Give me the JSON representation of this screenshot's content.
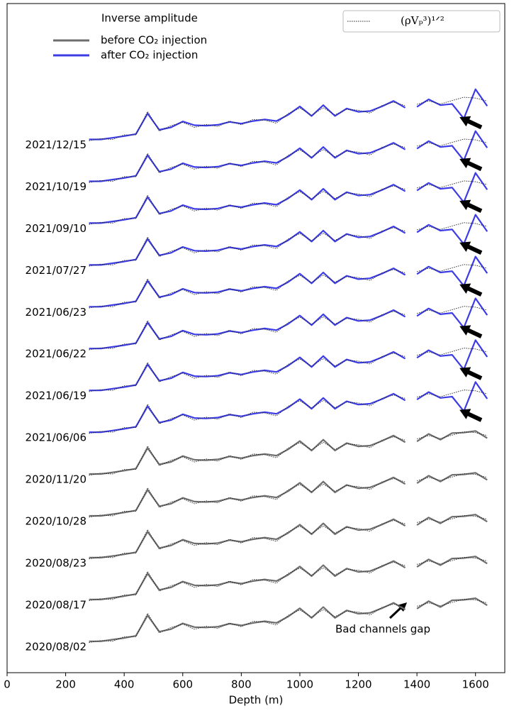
{
  "chart_data": {
    "type": "line",
    "x_label": "Depth (m)",
    "xlim": [
      0,
      1700
    ],
    "xticks": [
      0,
      200,
      400,
      600,
      800,
      1000,
      1200,
      1400,
      1600
    ],
    "ylim": [
      0,
      16
    ],
    "legend_title": "Inverse amplitude",
    "legend": [
      {
        "name": "before CO₂ injection",
        "color": "#6e6e6e"
      },
      {
        "name": "after CO₂ injection",
        "color": "#3c3ce6"
      }
    ],
    "reference_legend": "(ρVₚ³)¹ᐟ²",
    "reference_color": "#222222",
    "annotation": "Bad channels gap",
    "x": [
      280,
      320,
      360,
      400,
      440,
      480,
      520,
      560,
      600,
      640,
      680,
      720,
      760,
      800,
      840,
      880,
      920,
      960,
      1000,
      1040,
      1080,
      1120,
      1160,
      1200,
      1240,
      1280,
      1320,
      1360,
      1380,
      1400,
      1440,
      1480,
      1520,
      1560,
      1600,
      1640
    ],
    "series": [
      {
        "name": "2020/08/02",
        "color": "#6e6e6e",
        "values": [
          0.75,
          0.75,
          0.79,
          0.83,
          0.88,
          1.37,
          0.98,
          1.04,
          1.18,
          1.09,
          1.08,
          1.1,
          1.17,
          1.13,
          1.19,
          1.23,
          1.19,
          1.34,
          1.54,
          1.31,
          1.57,
          1.31,
          1.49,
          1.41,
          1.43,
          1.54,
          1.67,
          1.51,
          null,
          1.53,
          1.71,
          1.57,
          1.73,
          1.74,
          1.78,
          1.61
        ],
        "reference": [
          0.72,
          0.77,
          0.75,
          0.86,
          0.86,
          1.42,
          0.95,
          1.08,
          1.16,
          1.04,
          1.11,
          1.06,
          1.19,
          1.1,
          1.23,
          1.21,
          1.14,
          1.37,
          1.5,
          1.33,
          1.51,
          1.34,
          1.47,
          1.45,
          1.38,
          1.56,
          1.64,
          1.56,
          null,
          1.59,
          1.67,
          1.6,
          1.68,
          1.76,
          1.74,
          1.67
        ]
      },
      {
        "name": "2020/08/17",
        "color": "#6e6e6e",
        "values": [
          1.75,
          1.75,
          1.79,
          1.83,
          1.88,
          2.37,
          1.98,
          2.04,
          2.18,
          2.09,
          2.08,
          2.1,
          2.17,
          2.13,
          2.19,
          2.23,
          2.19,
          2.34,
          2.54,
          2.31,
          2.57,
          2.31,
          2.49,
          2.41,
          2.43,
          2.54,
          2.67,
          2.51,
          null,
          2.53,
          2.71,
          2.57,
          2.73,
          2.74,
          2.78,
          2.61
        ],
        "reference": [
          1.72,
          1.77,
          1.75,
          1.86,
          1.86,
          2.42,
          1.95,
          2.08,
          2.16,
          2.04,
          2.11,
          2.06,
          2.19,
          2.1,
          2.23,
          2.21,
          2.14,
          2.37,
          2.5,
          2.33,
          2.51,
          2.34,
          2.47,
          2.45,
          2.38,
          2.56,
          2.64,
          2.56,
          null,
          2.59,
          2.67,
          2.6,
          2.68,
          2.76,
          2.74,
          2.67
        ]
      },
      {
        "name": "2020/08/23",
        "color": "#6e6e6e",
        "values": [
          2.75,
          2.75,
          2.79,
          2.83,
          2.88,
          3.37,
          2.98,
          3.04,
          3.18,
          3.09,
          3.08,
          3.1,
          3.17,
          3.13,
          3.19,
          3.23,
          3.19,
          3.34,
          3.54,
          3.31,
          3.57,
          3.31,
          3.49,
          3.41,
          3.43,
          3.54,
          3.67,
          3.51,
          null,
          3.53,
          3.71,
          3.57,
          3.73,
          3.74,
          3.78,
          3.61
        ],
        "reference": [
          2.72,
          2.77,
          2.75,
          2.86,
          2.86,
          3.42,
          2.95,
          3.08,
          3.16,
          3.04,
          3.11,
          3.06,
          3.19,
          3.1,
          3.23,
          3.21,
          3.14,
          3.37,
          3.5,
          3.33,
          3.51,
          3.34,
          3.47,
          3.45,
          3.38,
          3.56,
          3.64,
          3.56,
          null,
          3.59,
          3.67,
          3.6,
          3.68,
          3.76,
          3.74,
          3.67
        ]
      },
      {
        "name": "2020/10/28",
        "color": "#6e6e6e",
        "values": [
          3.75,
          3.75,
          3.79,
          3.83,
          3.88,
          4.37,
          3.98,
          4.04,
          4.18,
          4.09,
          4.08,
          4.1,
          4.17,
          4.13,
          4.19,
          4.23,
          4.19,
          4.34,
          4.54,
          4.31,
          4.57,
          4.31,
          4.49,
          4.41,
          4.43,
          4.54,
          4.67,
          4.51,
          null,
          4.53,
          4.71,
          4.57,
          4.73,
          4.74,
          4.78,
          4.61
        ],
        "reference": [
          3.72,
          3.77,
          3.75,
          3.86,
          3.86,
          4.42,
          3.95,
          4.08,
          4.16,
          4.04,
          4.11,
          4.06,
          4.19,
          4.1,
          4.23,
          4.21,
          4.14,
          4.37,
          4.5,
          4.33,
          4.51,
          4.34,
          4.47,
          4.45,
          4.38,
          4.56,
          4.64,
          4.56,
          null,
          4.59,
          4.67,
          4.6,
          4.68,
          4.76,
          4.74,
          4.67
        ]
      },
      {
        "name": "2020/11/20",
        "color": "#6e6e6e",
        "values": [
          4.75,
          4.75,
          4.79,
          4.83,
          4.88,
          5.37,
          4.98,
          5.04,
          5.18,
          5.09,
          5.08,
          5.1,
          5.17,
          5.13,
          5.19,
          5.23,
          5.19,
          5.34,
          5.54,
          5.31,
          5.57,
          5.31,
          5.49,
          5.41,
          5.43,
          5.54,
          5.67,
          5.51,
          null,
          5.53,
          5.71,
          5.57,
          5.73,
          5.74,
          5.78,
          5.61
        ],
        "reference": [
          4.72,
          4.77,
          4.75,
          4.86,
          4.86,
          5.42,
          4.95,
          5.08,
          5.16,
          5.04,
          5.11,
          5.06,
          5.19,
          5.1,
          5.23,
          5.21,
          5.14,
          5.37,
          5.5,
          5.33,
          5.51,
          5.34,
          5.47,
          5.45,
          5.38,
          5.56,
          5.64,
          5.56,
          null,
          5.59,
          5.67,
          5.6,
          5.68,
          5.76,
          5.74,
          5.67
        ]
      },
      {
        "name": "2021/06/06",
        "color": "#3c3ce6",
        "values": [
          5.75,
          5.75,
          5.79,
          5.83,
          5.88,
          6.37,
          5.98,
          6.04,
          6.18,
          6.09,
          6.08,
          6.1,
          6.17,
          6.13,
          6.19,
          6.23,
          6.19,
          6.34,
          6.54,
          6.31,
          6.57,
          6.31,
          6.49,
          6.41,
          6.43,
          6.54,
          6.67,
          6.51,
          null,
          6.53,
          6.71,
          6.57,
          6.6,
          6.25,
          6.95,
          6.55
        ],
        "reference": [
          5.72,
          5.77,
          5.75,
          5.86,
          5.86,
          6.42,
          5.95,
          6.08,
          6.16,
          6.04,
          6.11,
          6.06,
          6.19,
          6.1,
          6.23,
          6.21,
          6.14,
          6.37,
          6.5,
          6.33,
          6.51,
          6.34,
          6.47,
          6.45,
          6.38,
          6.56,
          6.64,
          6.56,
          null,
          6.59,
          6.67,
          6.6,
          6.68,
          6.76,
          6.74,
          6.67
        ]
      },
      {
        "name": "2021/06/19",
        "color": "#3c3ce6",
        "values": [
          6.75,
          6.75,
          6.79,
          6.83,
          6.88,
          7.37,
          6.98,
          7.04,
          7.18,
          7.09,
          7.08,
          7.1,
          7.17,
          7.13,
          7.19,
          7.23,
          7.19,
          7.34,
          7.54,
          7.31,
          7.57,
          7.31,
          7.49,
          7.41,
          7.43,
          7.54,
          7.67,
          7.51,
          null,
          7.53,
          7.71,
          7.57,
          7.6,
          7.25,
          7.95,
          7.55
        ],
        "reference": [
          6.72,
          6.77,
          6.75,
          6.86,
          6.86,
          7.42,
          6.95,
          7.08,
          7.16,
          7.04,
          7.11,
          7.06,
          7.19,
          7.1,
          7.23,
          7.21,
          7.14,
          7.37,
          7.5,
          7.33,
          7.51,
          7.34,
          7.47,
          7.45,
          7.38,
          7.56,
          7.64,
          7.56,
          null,
          7.59,
          7.67,
          7.6,
          7.68,
          7.76,
          7.74,
          7.67
        ]
      },
      {
        "name": "2021/06/22",
        "color": "#3c3ce6",
        "values": [
          7.75,
          7.75,
          7.79,
          7.83,
          7.88,
          8.37,
          7.98,
          8.04,
          8.18,
          8.09,
          8.08,
          8.1,
          8.17,
          8.13,
          8.19,
          8.23,
          8.19,
          8.34,
          8.54,
          8.31,
          8.57,
          8.31,
          8.49,
          8.41,
          8.43,
          8.54,
          8.67,
          8.51,
          null,
          8.53,
          8.71,
          8.57,
          8.6,
          8.25,
          8.95,
          8.55
        ],
        "reference": [
          7.72,
          7.77,
          7.75,
          7.86,
          7.86,
          8.42,
          7.95,
          8.08,
          8.16,
          8.04,
          8.11,
          8.06,
          8.19,
          8.1,
          8.23,
          8.21,
          8.14,
          8.37,
          8.5,
          8.33,
          8.51,
          8.34,
          8.47,
          8.45,
          8.38,
          8.56,
          8.64,
          8.56,
          null,
          8.59,
          8.67,
          8.6,
          8.68,
          8.76,
          8.74,
          8.67
        ]
      },
      {
        "name": "2021/06/23",
        "color": "#3c3ce6",
        "values": [
          8.75,
          8.75,
          8.79,
          8.83,
          8.88,
          9.37,
          8.98,
          9.04,
          9.18,
          9.09,
          9.08,
          9.1,
          9.17,
          9.13,
          9.19,
          9.23,
          9.19,
          9.34,
          9.54,
          9.31,
          9.57,
          9.31,
          9.49,
          9.41,
          9.43,
          9.54,
          9.67,
          9.51,
          null,
          9.53,
          9.71,
          9.57,
          9.6,
          9.25,
          9.95,
          9.55
        ],
        "reference": [
          8.72,
          8.77,
          8.75,
          8.86,
          8.86,
          9.42,
          8.95,
          9.08,
          9.16,
          9.04,
          9.11,
          9.06,
          9.19,
          9.1,
          9.23,
          9.21,
          9.14,
          9.37,
          9.5,
          9.33,
          9.51,
          9.34,
          9.47,
          9.45,
          9.38,
          9.56,
          9.64,
          9.56,
          null,
          9.59,
          9.67,
          9.6,
          9.68,
          9.76,
          9.74,
          9.67
        ]
      },
      {
        "name": "2021/07/27",
        "color": "#3c3ce6",
        "values": [
          9.75,
          9.75,
          9.79,
          9.83,
          9.88,
          10.37,
          9.98,
          10.04,
          10.18,
          10.09,
          10.08,
          10.1,
          10.17,
          10.13,
          10.19,
          10.23,
          10.19,
          10.34,
          10.54,
          10.31,
          10.57,
          10.31,
          10.49,
          10.41,
          10.43,
          10.54,
          10.67,
          10.51,
          null,
          10.53,
          10.71,
          10.57,
          10.6,
          10.25,
          10.95,
          10.55
        ],
        "reference": [
          9.72,
          9.77,
          9.75,
          9.86,
          9.86,
          10.42,
          9.95,
          10.08,
          10.16,
          10.04,
          10.11,
          10.06,
          10.19,
          10.1,
          10.23,
          10.21,
          10.14,
          10.37,
          10.5,
          10.33,
          10.51,
          10.34,
          10.47,
          10.45,
          10.38,
          10.56,
          10.64,
          10.56,
          null,
          10.59,
          10.67,
          10.6,
          10.68,
          10.76,
          10.74,
          10.67
        ]
      },
      {
        "name": "2021/09/10",
        "color": "#3c3ce6",
        "values": [
          10.75,
          10.75,
          10.79,
          10.83,
          10.88,
          11.37,
          10.98,
          11.04,
          11.18,
          11.09,
          11.08,
          11.1,
          11.17,
          11.13,
          11.19,
          11.23,
          11.19,
          11.34,
          11.54,
          11.31,
          11.57,
          11.31,
          11.49,
          11.41,
          11.43,
          11.54,
          11.67,
          11.51,
          null,
          11.53,
          11.71,
          11.57,
          11.6,
          11.25,
          11.95,
          11.55
        ],
        "reference": [
          10.72,
          10.77,
          10.75,
          10.86,
          10.86,
          11.42,
          10.95,
          11.08,
          11.16,
          11.04,
          11.11,
          11.06,
          11.19,
          11.1,
          11.23,
          11.21,
          11.14,
          11.37,
          11.5,
          11.33,
          11.51,
          11.34,
          11.47,
          11.45,
          11.38,
          11.56,
          11.64,
          11.56,
          null,
          11.59,
          11.67,
          11.6,
          11.68,
          11.76,
          11.74,
          11.67
        ]
      },
      {
        "name": "2021/10/19",
        "color": "#3c3ce6",
        "values": [
          11.75,
          11.75,
          11.79,
          11.83,
          11.88,
          12.37,
          11.98,
          12.04,
          12.18,
          12.09,
          12.08,
          12.1,
          12.17,
          12.13,
          12.19,
          12.23,
          12.19,
          12.34,
          12.54,
          12.31,
          12.57,
          12.31,
          12.49,
          12.41,
          12.43,
          12.54,
          12.67,
          12.51,
          null,
          12.53,
          12.71,
          12.57,
          12.6,
          12.25,
          12.95,
          12.55
        ],
        "reference": [
          11.72,
          11.77,
          11.75,
          11.86,
          11.86,
          12.42,
          11.95,
          12.08,
          12.16,
          12.04,
          12.11,
          12.06,
          12.19,
          12.1,
          12.23,
          12.21,
          12.14,
          12.37,
          12.5,
          12.33,
          12.51,
          12.34,
          12.47,
          12.45,
          12.38,
          12.56,
          12.64,
          12.56,
          null,
          12.59,
          12.67,
          12.6,
          12.68,
          12.76,
          12.74,
          12.67
        ]
      },
      {
        "name": "2021/12/15",
        "color": "#3c3ce6",
        "values": [
          12.75,
          12.75,
          12.79,
          12.83,
          12.88,
          13.37,
          12.98,
          13.04,
          13.18,
          13.09,
          13.08,
          13.1,
          13.17,
          13.13,
          13.19,
          13.23,
          13.19,
          13.34,
          13.54,
          13.31,
          13.57,
          13.31,
          13.49,
          13.41,
          13.43,
          13.54,
          13.67,
          13.51,
          null,
          13.53,
          13.71,
          13.57,
          13.6,
          13.25,
          13.95,
          13.55
        ],
        "reference": [
          12.72,
          12.77,
          12.75,
          12.86,
          12.86,
          13.42,
          12.95,
          13.08,
          13.16,
          13.04,
          13.11,
          13.06,
          13.19,
          13.1,
          13.23,
          13.21,
          13.14,
          13.37,
          13.5,
          13.33,
          13.51,
          13.34,
          13.47,
          13.45,
          13.38,
          13.56,
          13.64,
          13.56,
          null,
          13.59,
          13.67,
          13.6,
          13.68,
          13.76,
          13.74,
          13.67
        ]
      }
    ]
  }
}
